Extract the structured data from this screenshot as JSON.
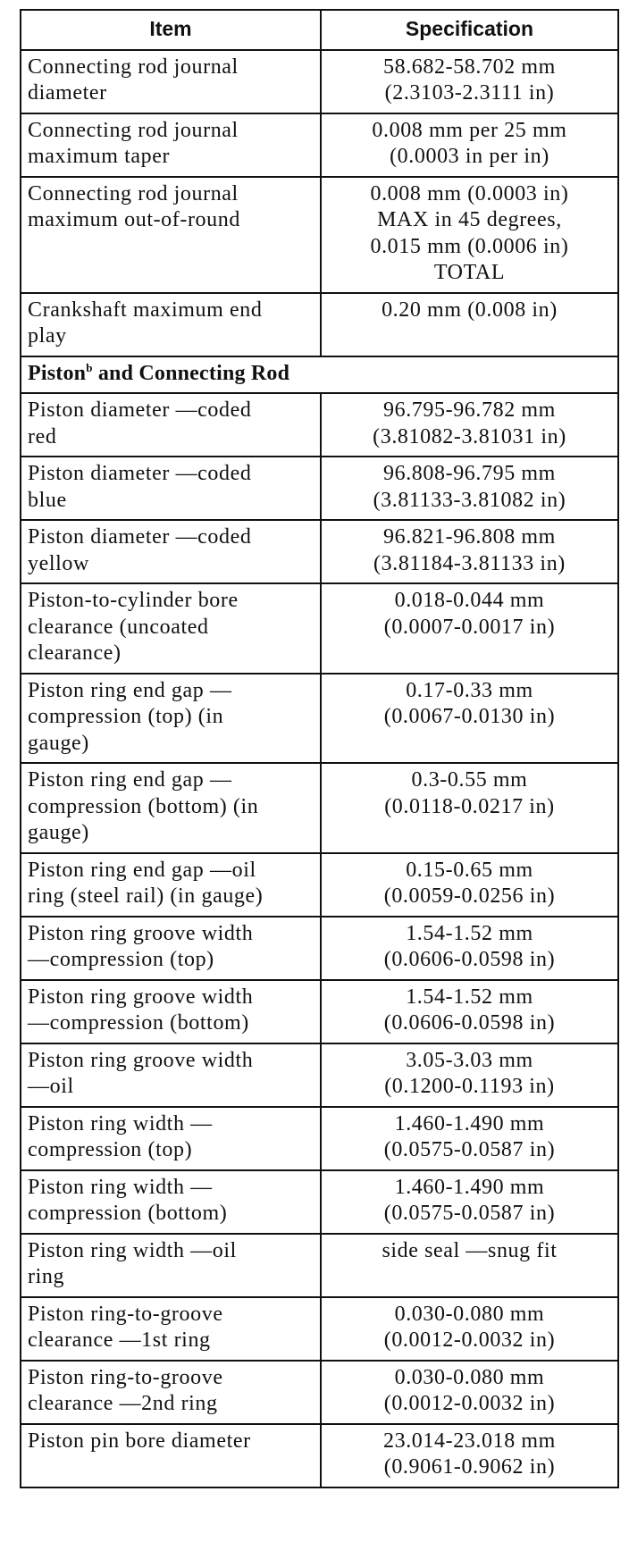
{
  "table": {
    "headers": {
      "item": "Item",
      "specification": "Specification"
    },
    "rows_a": [
      {
        "item": "Connecting rod journal\ndiameter",
        "spec": "58.682-58.702 mm\n(2.3103-2.3111 in)"
      },
      {
        "item": "Connecting rod journal\nmaximum taper",
        "spec": "0.008 mm per 25 mm\n(0.0003 in per in)"
      },
      {
        "item": "Connecting rod journal\nmaximum out-of-round",
        "spec": "0.008 mm (0.0003 in)\nMAX in 45 degrees,\n0.015 mm (0.0006 in)\nTOTAL"
      },
      {
        "item": "Crankshaft maximum end\nplay",
        "spec": "0.20 mm (0.008 in)"
      }
    ],
    "section": {
      "title_start": "Piston",
      "footnote": "b",
      "title_end": " and Connecting Rod"
    },
    "rows_b": [
      {
        "item": "Piston diameter —coded\nred",
        "spec": "96.795-96.782 mm\n(3.81082-3.81031 in)"
      },
      {
        "item": "Piston diameter —coded\nblue",
        "spec": "96.808-96.795 mm\n(3.81133-3.81082 in)"
      },
      {
        "item": "Piston diameter —coded\nyellow",
        "spec": "96.821-96.808 mm\n(3.81184-3.81133 in)"
      },
      {
        "item": "Piston-to-cylinder bore\nclearance (uncoated\nclearance)",
        "spec": "0.018-0.044 mm\n(0.0007-0.0017 in)"
      },
      {
        "item": "Piston ring end gap —\ncompression (top) (in\ngauge)",
        "spec": "0.17-0.33 mm\n(0.0067-0.0130 in)"
      },
      {
        "item": "Piston ring end gap —\ncompression (bottom) (in\ngauge)",
        "spec": "0.3-0.55 mm\n(0.0118-0.0217 in)"
      },
      {
        "item": "Piston ring end gap —oil\nring (steel rail) (in gauge)",
        "spec": "0.15-0.65 mm\n(0.0059-0.0256 in)"
      },
      {
        "item": "Piston ring groove width\n—compression (top)",
        "spec": "1.54-1.52 mm\n(0.0606-0.0598 in)"
      },
      {
        "item": "Piston ring groove width\n—compression (bottom)",
        "spec": "1.54-1.52 mm\n(0.0606-0.0598 in)"
      },
      {
        "item": "Piston ring groove width\n—oil",
        "spec": "3.05-3.03 mm\n(0.1200-0.1193 in)"
      },
      {
        "item": "Piston ring width —\ncompression (top)",
        "spec": "1.460-1.490 mm\n(0.0575-0.0587 in)"
      },
      {
        "item": "Piston ring width —\ncompression (bottom)",
        "spec": "1.460-1.490 mm\n(0.0575-0.0587 in)"
      },
      {
        "item": "Piston ring width —oil\nring",
        "spec": "side seal —snug fit"
      },
      {
        "item": "Piston ring-to-groove\nclearance —1st ring",
        "spec": "0.030-0.080 mm\n(0.0012-0.0032 in)"
      },
      {
        "item": "Piston ring-to-groove\nclearance —2nd ring",
        "spec": "0.030-0.080 mm\n(0.0012-0.0032 in)"
      },
      {
        "item": "Piston pin bore diameter",
        "spec": "23.014-23.018 mm\n(0.9061-0.9062 in)"
      }
    ]
  }
}
